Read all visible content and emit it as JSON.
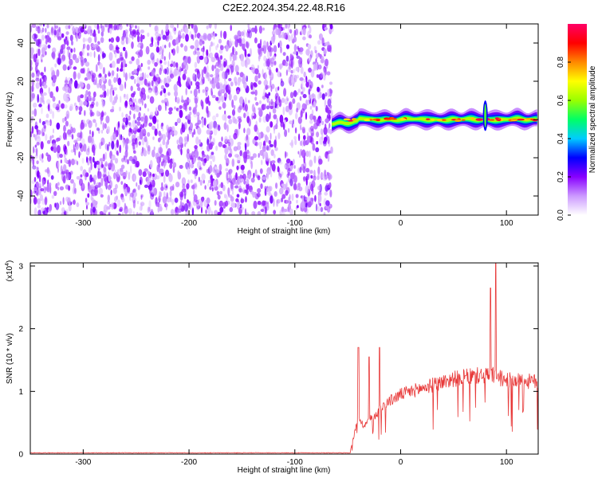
{
  "chart_data": [
    {
      "type": "heatmap",
      "title": "C2E2.2024.354.22.48.R16",
      "xlabel": "Height of straight line (km)",
      "ylabel": "Frequency (Hz)",
      "xlim": [
        -350,
        130
      ],
      "ylim": [
        -50,
        50
      ],
      "x_ticks": [
        -300,
        -200,
        -100,
        0,
        100
      ],
      "y_ticks": [
        -40,
        -20,
        0,
        20,
        40
      ],
      "grid": false,
      "colorbar": {
        "label": "Normalized spectral amplitude",
        "range": [
          0,
          1
        ],
        "ticks": [
          "0.0",
          "0.2",
          "0.4",
          "0.6",
          "0.8"
        ],
        "colors": [
          "#ffffff",
          "#cc99ff",
          "#8800ff",
          "#0000ff",
          "#00ccff",
          "#00ff66",
          "#99ff00",
          "#ffff00",
          "#ff8800",
          "#ff0000",
          "#ff0066"
        ]
      },
      "regions": [
        {
          "x_range": [
            -350,
            -65
          ],
          "freq_range": [
            -50,
            50
          ],
          "level": "low noise (~0.1–0.2)"
        },
        {
          "x_range": [
            -65,
            130
          ],
          "freq_center": 0,
          "freq_halfwidth": 3,
          "level": "narrow tone, peaks ~0.9–1.0"
        }
      ],
      "features": [
        {
          "x": 80,
          "freq_range": [
            -6,
            10
          ],
          "note": "vertical spike"
        }
      ]
    },
    {
      "type": "line",
      "xlabel": "Height of straight line (km)",
      "ylabel": "SNR (10 * v/v)",
      "y_multiplier": "(x10^4)",
      "y_multiplier_base": "(x10",
      "y_multiplier_exp": "4",
      "y_multiplier_close": ")",
      "xlim": [
        -350,
        130
      ],
      "ylim": [
        0,
        3.05
      ],
      "x_ticks": [
        -300,
        -200,
        -100,
        0,
        100
      ],
      "y_ticks": [
        0,
        1,
        2,
        3
      ],
      "color": "#e83a3a",
      "grid": false,
      "envelope": {
        "x": [
          -350,
          -48,
          -44,
          -40,
          -35,
          -30,
          -25,
          -20,
          -15,
          -10,
          -5,
          0,
          10,
          20,
          30,
          40,
          50,
          60,
          70,
          80,
          85,
          90,
          95,
          100,
          110,
          120,
          130
        ],
        "y": [
          0.02,
          0.02,
          0.3,
          0.6,
          0.45,
          0.55,
          0.6,
          0.7,
          0.8,
          0.85,
          0.9,
          0.95,
          1.0,
          1.05,
          1.1,
          1.15,
          1.2,
          1.22,
          1.25,
          1.25,
          1.27,
          1.25,
          1.2,
          1.18,
          1.17,
          1.16,
          1.15
        ]
      },
      "spikes": [
        {
          "x": -40,
          "y": 1.7
        },
        {
          "x": -30,
          "y": 1.55
        },
        {
          "x": -20,
          "y": 1.7
        },
        {
          "x": 85,
          "y": 2.65
        },
        {
          "x": 90,
          "y": 3.05
        }
      ]
    }
  ]
}
